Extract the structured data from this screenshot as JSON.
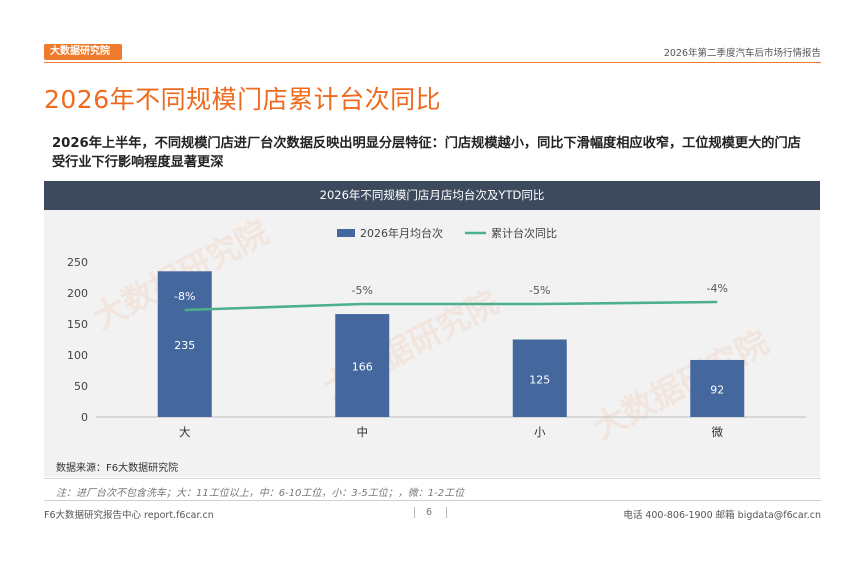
{
  "header": {
    "logo_text": "大数据研究院",
    "report_name": "2026年第二季度汽车后市场行情报告"
  },
  "page_title": "2026年不同规模门店累计台次同比",
  "summary": "2026年上半年，不同规模门店进厂台次数据反映出明显分层特征：门店规模越小，同比下滑幅度相应收窄，工位规模更大的门店受行业下行影响程度显著更深",
  "watermark": "大数据研究院",
  "chart_data": {
    "type": "bar",
    "title": "2026年不同规模门店月店均台次及YTD同比",
    "categories": [
      "大",
      "中",
      "小",
      "微"
    ],
    "series": [
      {
        "name": "2026年月均台次",
        "type": "bar",
        "color": "#44679e",
        "values": [
          235,
          166,
          125,
          92
        ],
        "labels": [
          "235",
          "166",
          "125",
          "92"
        ]
      },
      {
        "name": "累计台次同比",
        "type": "line",
        "color": "#4caf8e",
        "values": [
          -8,
          -5,
          -5,
          -4
        ],
        "labels": [
          "-8%",
          "-5%",
          "-5%",
          "-4%"
        ]
      }
    ],
    "ylim": [
      0,
      250
    ],
    "yticks": [
      "0",
      "50",
      "100",
      "150",
      "200",
      "250"
    ],
    "legend": "top-center",
    "grid": false
  },
  "source": "数据来源：F6大数据研究院",
  "note": "注：进厂台次不包含洗车；大：11工位以上，中：6-10工位，小：3-5工位；，微：1-2工位",
  "footer": {
    "left": "F6大数据研究报告中心 report.f6car.cn",
    "page": "6",
    "right": "电话 400-806-1900  邮箱 bigdata@f6car.cn"
  }
}
